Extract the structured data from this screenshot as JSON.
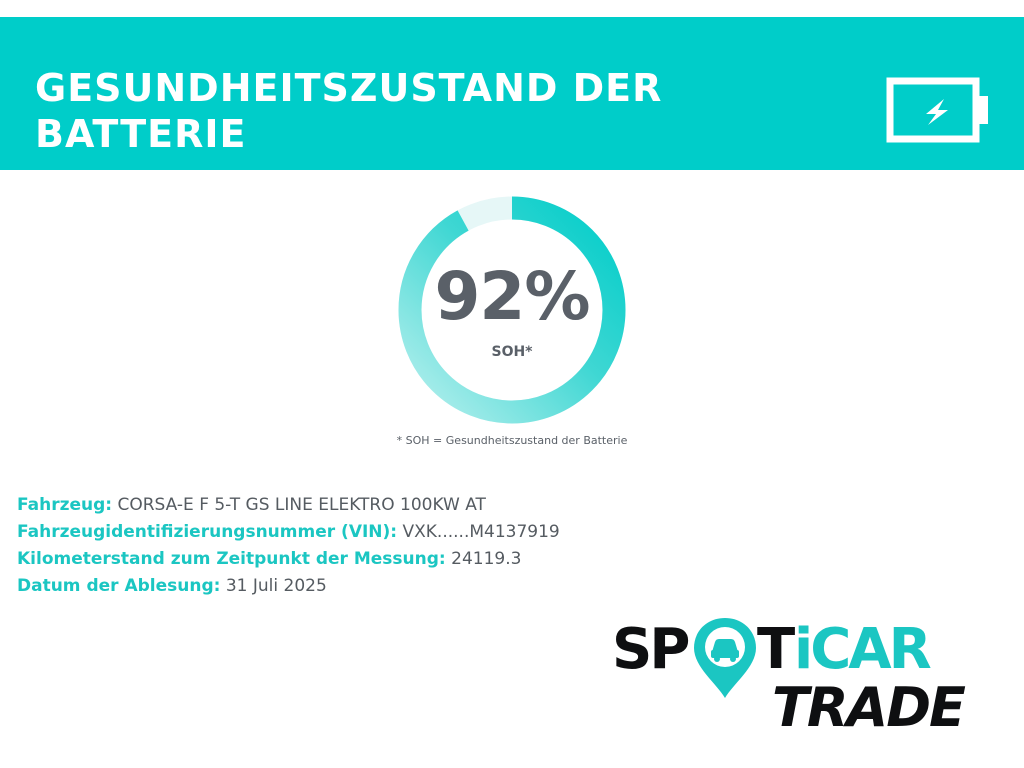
{
  "header": {
    "title": "GESUNDHEITSZUSTAND DER BATTERIE",
    "icon": "battery-charging-icon"
  },
  "gauge": {
    "value": "92%",
    "level": 0.92,
    "label": "SOH*"
  },
  "footnote": "* SOH = Gesundheitszustand der Batterie",
  "info": [
    {
      "key": "Fahrzeug:",
      "value": "CORSA-E F 5-T GS LINE ELEKTRO 100KW AT"
    },
    {
      "key": "Fahrzeugidentifizierungsnummer (VIN):",
      "value": "VXK......M4137919"
    },
    {
      "key": "Kilometerstand zum Zeitpunkt der Messung:",
      "value": "24119.3"
    },
    {
      "key": "Datum der Ablesung:",
      "value": "31 Juli 2025"
    }
  ],
  "logo": {
    "line1": "SPOTiCAR",
    "line2": "TRADE"
  },
  "colors": {
    "accent": "#00cdc9",
    "text": "#5a6068",
    "logo_dark": "#0e0f11"
  }
}
